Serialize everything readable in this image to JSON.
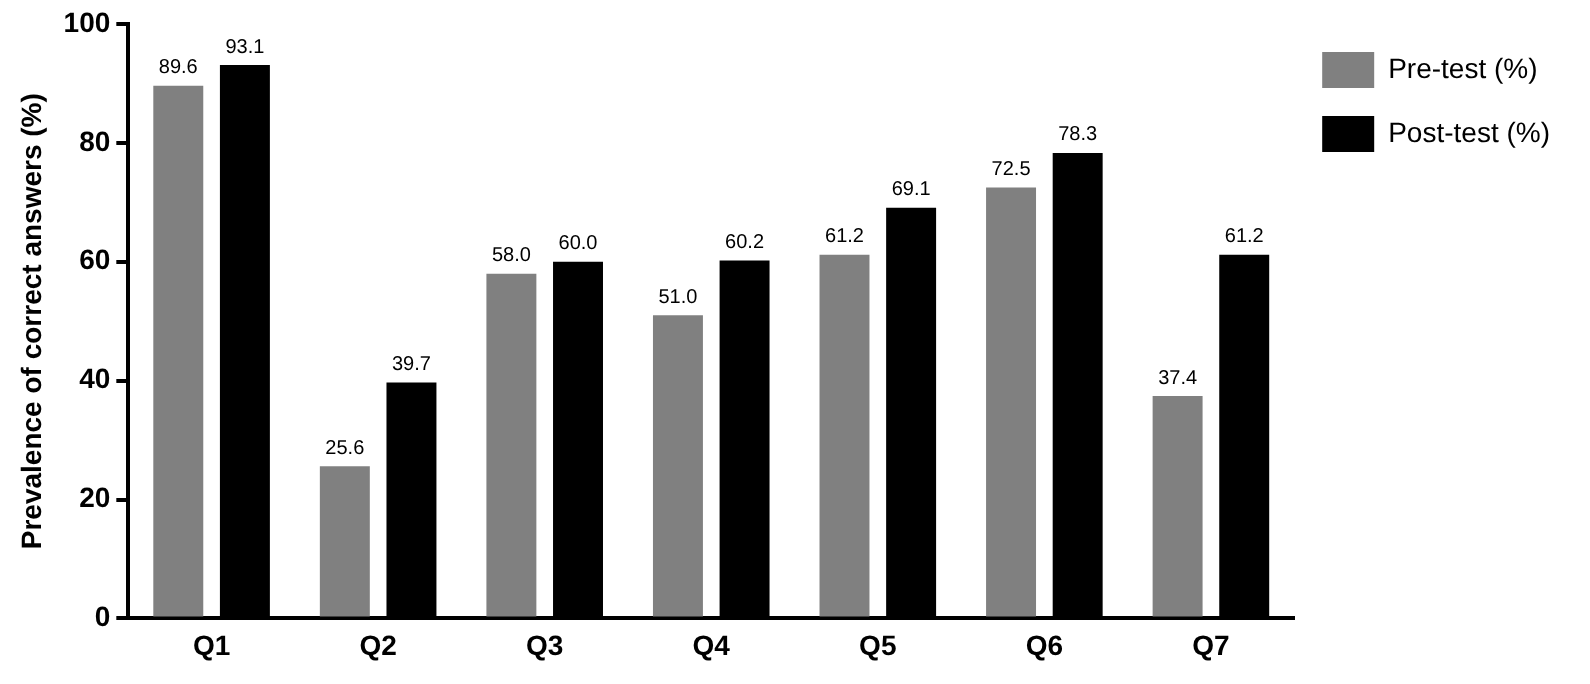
{
  "chart_data": {
    "type": "bar",
    "ylabel": "Prevalence of correct answers (%)",
    "categories": [
      "Q1",
      "Q2",
      "Q3",
      "Q4",
      "Q5",
      "Q6",
      "Q7"
    ],
    "series": [
      {
        "name": "Pre-test (%)",
        "color": "#808080",
        "values": [
          89.6,
          25.6,
          58.0,
          51.0,
          61.2,
          72.5,
          37.4
        ],
        "value_labels": [
          "89.6",
          "25.6",
          "58.0",
          "51.0",
          "61.2",
          "72.5",
          "37.4"
        ]
      },
      {
        "name": "Post-test (%)",
        "color": "#000000",
        "values": [
          93.1,
          39.7,
          60.0,
          60.2,
          69.1,
          78.3,
          61.2
        ],
        "value_labels": [
          "93.1",
          "39.7",
          "60.0",
          "60.2",
          "69.1",
          "78.3",
          "61.2"
        ]
      }
    ],
    "ylim": [
      0,
      100
    ],
    "yticks": [
      0,
      20,
      40,
      60,
      80,
      100
    ],
    "grid": false,
    "legend": "top right"
  }
}
